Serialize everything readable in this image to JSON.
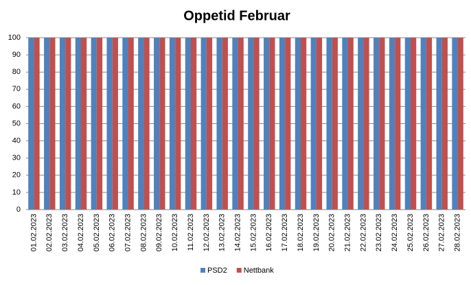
{
  "chart_data": {
    "type": "bar",
    "title": "Oppetid Februar",
    "categories": [
      "01.02.2023",
      "02.02.2023",
      "03.02.2023",
      "04.02.2023",
      "05.02.2023",
      "06.02.2023",
      "07.02.2023",
      "08.02.2023",
      "09.02.2023",
      "10.02.2023",
      "11.02.2023",
      "12.02.2023",
      "13.02.2023",
      "14.02.2023",
      "15.02.2023",
      "16.02.2023",
      "17.02.2023",
      "18.02.2023",
      "19.02.2023",
      "20.02.2023",
      "21.02.2023",
      "22.02.2023",
      "23.02.2023",
      "24.02.2023",
      "25.02.2023",
      "26.02.2023",
      "27.02.2023",
      "28.02.2023"
    ],
    "series": [
      {
        "name": "PSD2",
        "color": "#4f81bd",
        "values": [
          100,
          100,
          100,
          100,
          100,
          100,
          100,
          100,
          100,
          100,
          100,
          100,
          100,
          100,
          100,
          100,
          100,
          100,
          100,
          100,
          100,
          100,
          100,
          100,
          100,
          100,
          100,
          100
        ]
      },
      {
        "name": "Nettbank",
        "color": "#c0504d",
        "values": [
          100,
          100,
          100,
          100,
          100,
          100,
          100,
          100,
          100,
          100,
          100,
          100,
          100,
          100,
          100,
          100,
          100,
          100,
          100,
          100,
          100,
          100,
          100,
          100,
          100,
          100,
          100,
          100
        ]
      }
    ],
    "ylim": [
      0,
      100
    ],
    "yticks": [
      0,
      10,
      20,
      30,
      40,
      50,
      60,
      70,
      80,
      90,
      100
    ],
    "grid": true,
    "legend": "bottom"
  }
}
